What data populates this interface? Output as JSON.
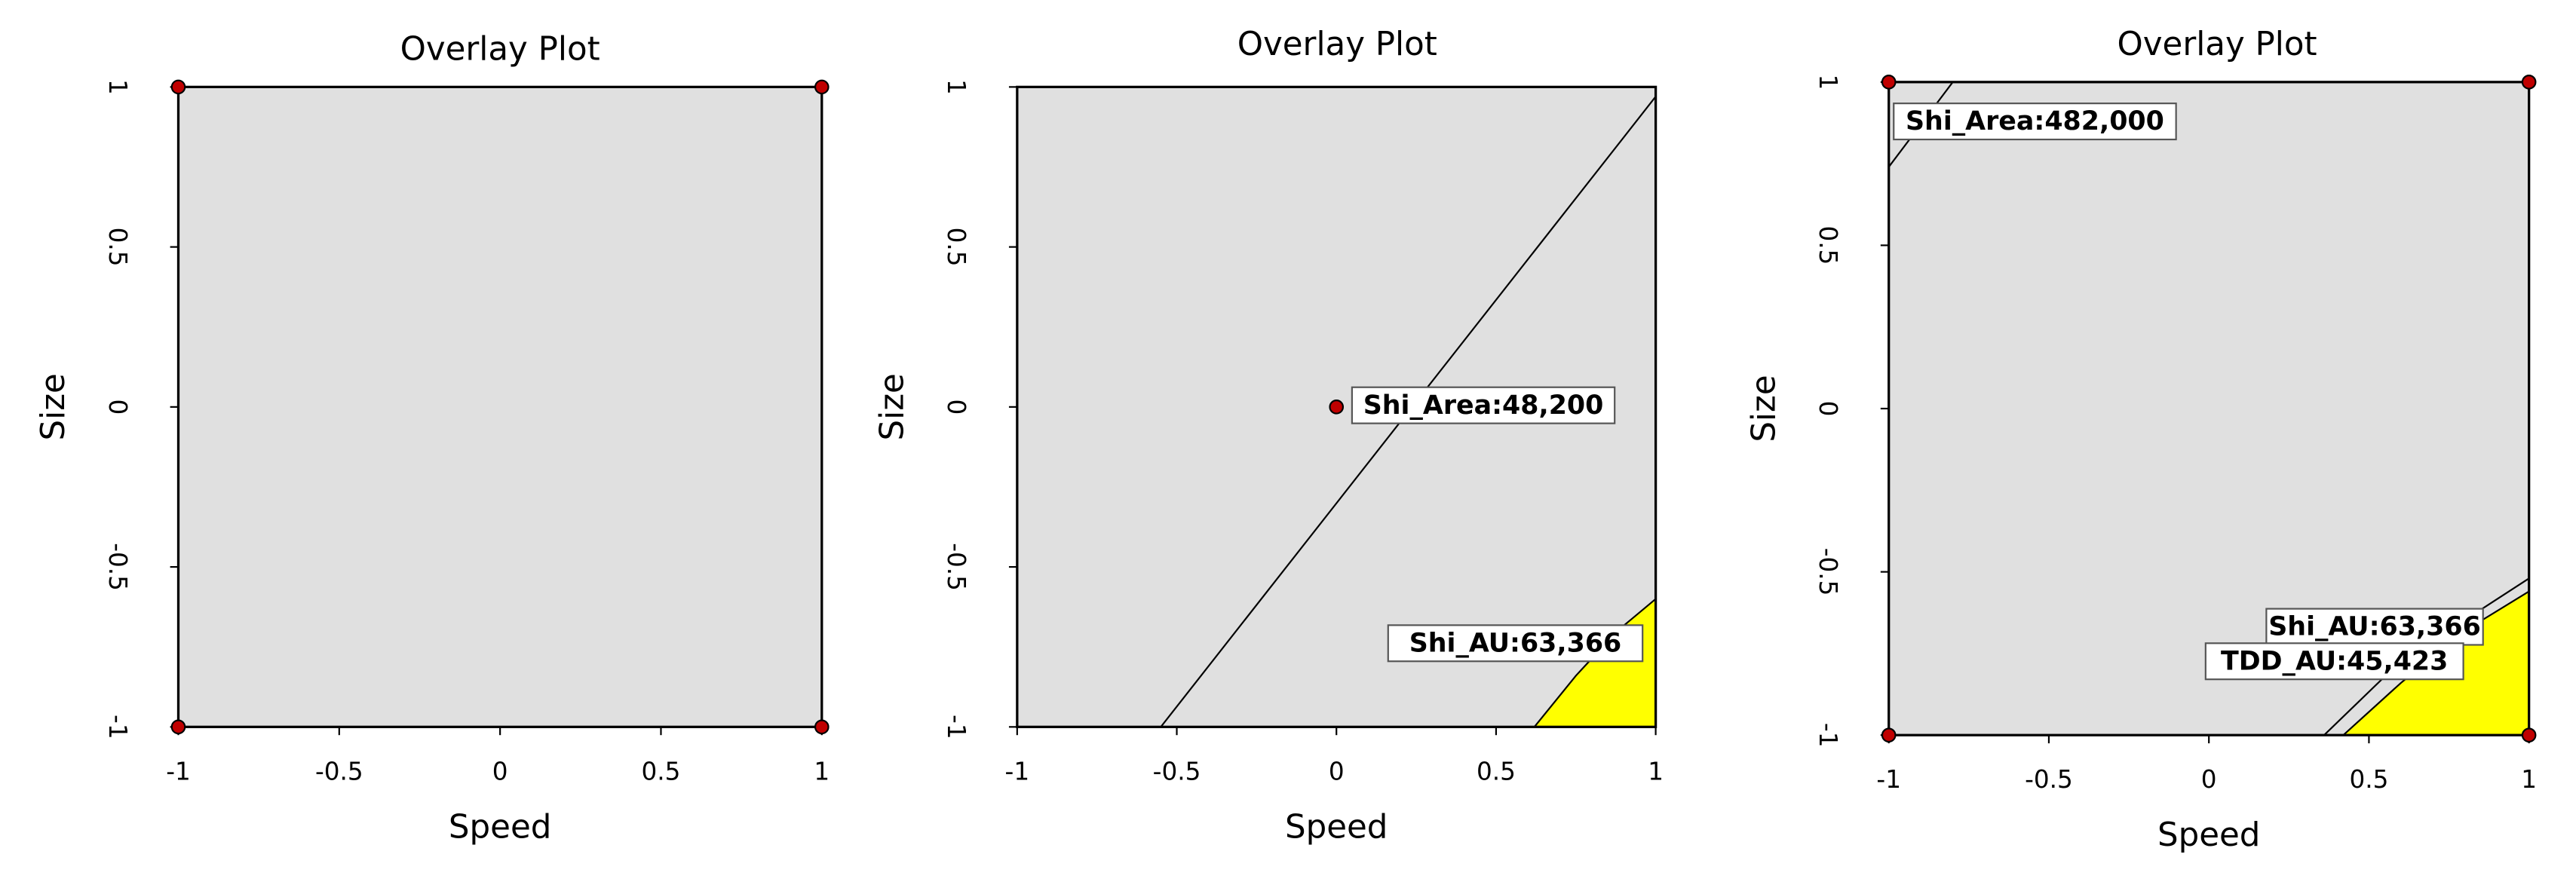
{
  "chart_data": [
    {
      "type": "overlay",
      "title": "Overlay Plot",
      "xlabel": "Speed",
      "ylabel": "Size",
      "xlim": [
        -1,
        1
      ],
      "ylim": [
        -1,
        1
      ],
      "xticks": [
        -1,
        -0.5,
        0,
        0.5,
        1
      ],
      "yticks": [
        -1,
        -0.5,
        0,
        0.5,
        1
      ],
      "background": "#e0e0e0",
      "points": {
        "color": "#c00000",
        "x": [
          -1,
          1,
          -1,
          1
        ],
        "y": [
          1,
          1,
          -1,
          -1
        ]
      },
      "regions": [],
      "contours": []
    },
    {
      "type": "overlay",
      "title": "Overlay Plot",
      "xlabel": "Speed",
      "ylabel": "Size",
      "xlim": [
        -1,
        1
      ],
      "ylim": [
        -1,
        1
      ],
      "xticks": [
        -1,
        -0.5,
        0,
        0.5,
        1
      ],
      "yticks": [
        -1,
        -0.5,
        0,
        0.5,
        1
      ],
      "background": "#e0e0e0",
      "points": {
        "color": "#c00000",
        "x": [
          0
        ],
        "y": [
          0
        ]
      },
      "regions": [
        {
          "color": "#ffff00",
          "x": [
            0.62,
            0.75,
            0.88,
            1,
            1
          ],
          "y": [
            -1,
            -0.84,
            -0.7,
            -0.6,
            -1
          ]
        }
      ],
      "contours": [
        {
          "label": "Shi_Area:48,200",
          "x": [
            -0.55,
            1
          ],
          "y": [
            -1,
            0.97
          ]
        },
        {
          "label": "Shi_AU:63,366",
          "x": [
            0.62,
            0.75,
            0.88,
            1
          ],
          "y": [
            -1,
            -0.84,
            -0.7,
            -0.6
          ]
        }
      ]
    },
    {
      "type": "overlay",
      "title": "Overlay Plot",
      "xlabel": "Speed",
      "ylabel": "Size",
      "xlim": [
        -1,
        1
      ],
      "ylim": [
        -1,
        1
      ],
      "xticks": [
        -1,
        -0.5,
        0,
        0.5,
        1
      ],
      "yticks": [
        -1,
        -0.5,
        0,
        0.5,
        1
      ],
      "background": "#e0e0e0",
      "points": {
        "color": "#c00000",
        "x": [
          -1,
          1,
          -1,
          1
        ],
        "y": [
          1,
          1,
          -1,
          -1
        ]
      },
      "regions": [
        {
          "color": "#ffff00",
          "x": [
            0.42,
            0.6,
            0.8,
            1,
            1
          ],
          "y": [
            -1,
            -0.84,
            -0.68,
            -0.56,
            -1
          ]
        }
      ],
      "contours": [
        {
          "label": "Shi_Area:482,000",
          "x": [
            -1,
            -0.8
          ],
          "y": [
            0.74,
            1
          ]
        },
        {
          "label": "Shi_AU:63,366",
          "x": [
            0.36,
            0.55,
            0.78,
            1
          ],
          "y": [
            -1,
            -0.82,
            -0.66,
            -0.52
          ]
        },
        {
          "label": "TDD_AU:45,423",
          "x": [
            0.42,
            0.6,
            0.8,
            1
          ],
          "y": [
            -1,
            -0.84,
            -0.68,
            -0.56
          ]
        }
      ]
    }
  ]
}
